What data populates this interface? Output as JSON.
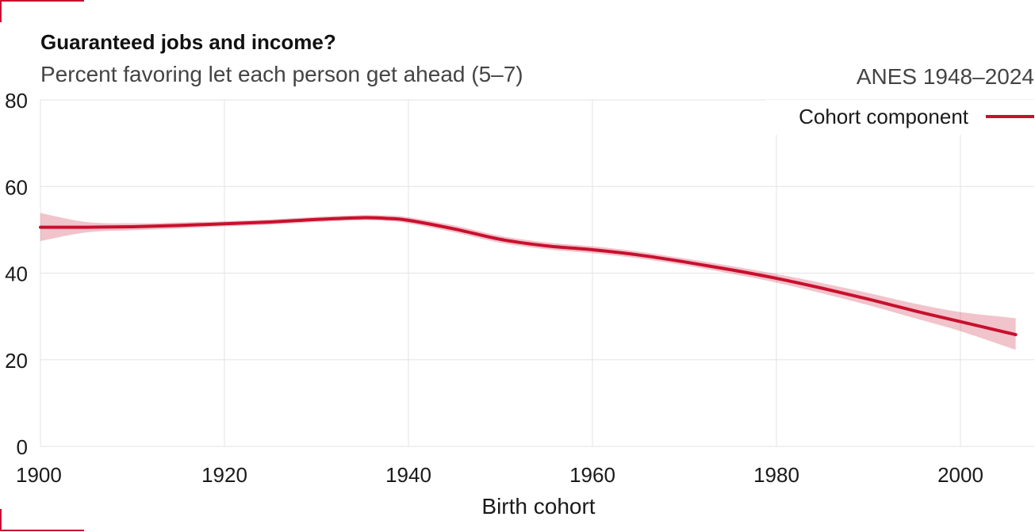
{
  "header": {
    "title": "Guaranteed jobs and income?",
    "subtitle": "Percent favoring let each person get ahead (5–7)",
    "source": "ANES 1948–2024"
  },
  "colors": {
    "accent": "#c8102e",
    "band": "#c8102e"
  },
  "chart_data": {
    "type": "line",
    "title": "Guaranteed jobs and income?",
    "subtitle": "Percent favoring let each person get ahead (5–7)",
    "xlabel": "Birth cohort",
    "ylabel": "",
    "xlim": [
      1900,
      2007
    ],
    "ylim": [
      0,
      80
    ],
    "x_ticks": [
      1900,
      1920,
      1940,
      1960,
      1980,
      2000
    ],
    "y_ticks": [
      0,
      20,
      40,
      60,
      80
    ],
    "grid": true,
    "legend_position": "top-right",
    "series": [
      {
        "name": "Cohort component",
        "color": "#c8102e",
        "x": [
          1900,
          1905,
          1910,
          1915,
          1920,
          1925,
          1930,
          1935,
          1938,
          1940,
          1945,
          1950,
          1955,
          1960,
          1965,
          1970,
          1975,
          1980,
          1985,
          1990,
          1995,
          2000,
          2006
        ],
        "y": [
          50.6,
          50.6,
          50.7,
          51.0,
          51.4,
          51.8,
          52.4,
          52.8,
          52.6,
          52.2,
          50.2,
          47.8,
          46.3,
          45.4,
          44.2,
          42.6,
          40.8,
          38.8,
          36.5,
          34.0,
          31.3,
          28.8,
          25.8
        ],
        "lower": [
          47.4,
          49.4,
          49.9,
          50.3,
          50.8,
          51.2,
          51.8,
          52.2,
          52.0,
          51.5,
          49.4,
          47.0,
          45.5,
          44.6,
          43.4,
          41.8,
          39.9,
          37.8,
          35.3,
          32.6,
          29.6,
          26.6,
          22.3
        ],
        "upper": [
          53.9,
          51.8,
          51.5,
          51.7,
          52.0,
          52.4,
          53.0,
          53.4,
          53.3,
          52.9,
          51.0,
          48.6,
          47.1,
          46.2,
          45.0,
          43.4,
          41.7,
          39.8,
          37.7,
          35.4,
          33.0,
          31.0,
          29.6
        ]
      }
    ]
  }
}
